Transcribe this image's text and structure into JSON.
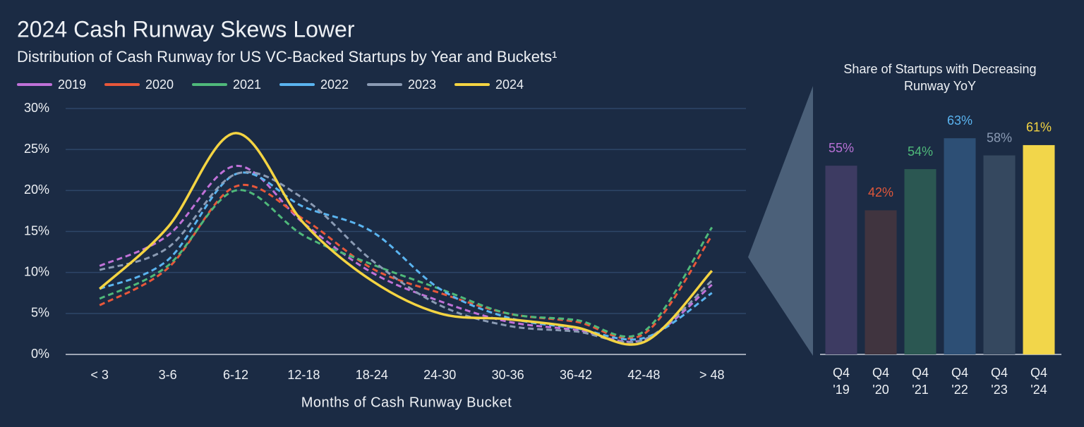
{
  "chart_data": [
    {
      "type": "line",
      "title": "2024 Cash Runway Skews Lower",
      "subtitle": "Distribution of Cash Runway for US VC-Backed Startups by Year and Buckets¹",
      "x_label": "Months of Cash Runway Bucket",
      "categories": [
        "< 3",
        "3-6",
        "6-12",
        "12-18",
        "18-24",
        "24-30",
        "30-36",
        "36-42",
        "42-48",
        "> 48"
      ],
      "series": [
        {
          "name": "2019",
          "color": "#c071d8",
          "dashed": true,
          "values": [
            10.8,
            14.5,
            23,
            16,
            10,
            6.5,
            4,
            3,
            1.8,
            8.5
          ]
        },
        {
          "name": "2020",
          "color": "#e8573a",
          "dashed": true,
          "values": [
            6,
            10.5,
            20.5,
            16.5,
            10.5,
            7.5,
            5,
            4,
            2.5,
            14.5
          ]
        },
        {
          "name": "2021",
          "color": "#4fb97a",
          "dashed": true,
          "values": [
            6.8,
            10.8,
            20,
            14.5,
            11,
            8,
            5,
            4.2,
            2.8,
            15.5
          ]
        },
        {
          "name": "2022",
          "color": "#5ab4f0",
          "dashed": true,
          "values": [
            8,
            11.5,
            22,
            18,
            15,
            8,
            4.5,
            3.2,
            2,
            7.5
          ]
        },
        {
          "name": "2023",
          "color": "#8b9bb4",
          "dashed": true,
          "values": [
            10.3,
            13,
            22,
            19,
            11.5,
            6,
            3.5,
            2.8,
            1.8,
            9
          ]
        },
        {
          "name": "2024",
          "color": "#f4d442",
          "dashed": false,
          "values": [
            8,
            15.5,
            27,
            16,
            9,
            5,
            4.3,
            3.3,
            1.5,
            10.2
          ]
        }
      ],
      "ylim": [
        0,
        30
      ],
      "yticks": [
        {
          "value": 0,
          "label": "0%"
        },
        {
          "value": 5,
          "label": "5%"
        },
        {
          "value": 10,
          "label": "10%"
        },
        {
          "value": 15,
          "label": "15%"
        },
        {
          "value": 20,
          "label": "20%"
        },
        {
          "value": 25,
          "label": "25%"
        },
        {
          "value": 30,
          "label": "30%"
        }
      ],
      "grid": true
    },
    {
      "type": "bar",
      "title": "Share of Startups with Decreasing Runway YoY",
      "categories": [
        "Q4 '19",
        "Q4 '20",
        "Q4 '21",
        "Q4 '22",
        "Q4 '23",
        "Q4 '24"
      ],
      "values": [
        55,
        42,
        54,
        63,
        58,
        61
      ],
      "value_labels": [
        "55%",
        "42%",
        "54%",
        "63%",
        "58%",
        "61%"
      ],
      "colors": [
        "#3d3b62",
        "#40343f",
        "#2b5752",
        "#2d4f75",
        "#35485f",
        "#f2d64a"
      ],
      "label_colors": [
        "#b871d6",
        "#e0573a",
        "#4fb97a",
        "#5ab4f0",
        "#8b9bb4",
        "#f4d442"
      ]
    }
  ]
}
